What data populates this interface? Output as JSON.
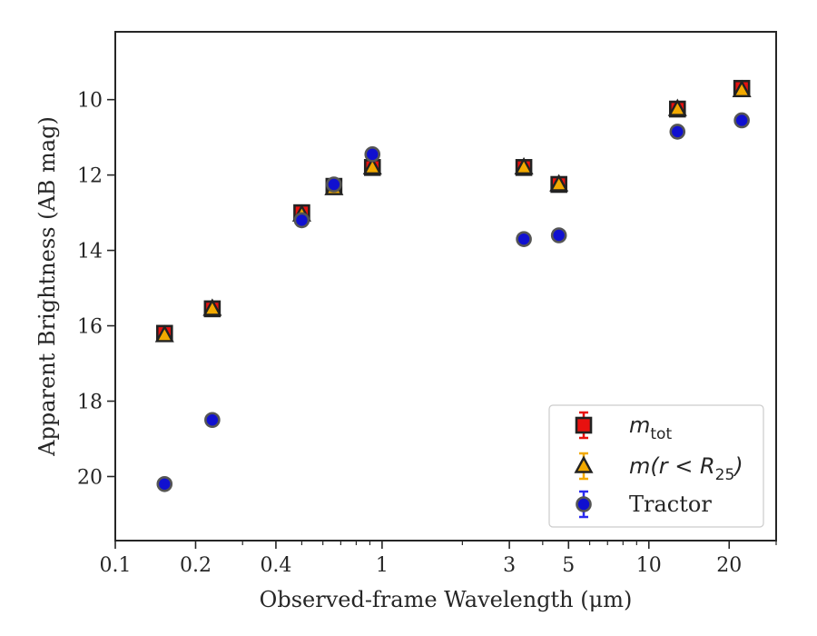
{
  "chart_data": {
    "type": "scatter",
    "xlabel": "Observed-frame Wavelength (μm)",
    "ylabel": "Apparent Brightness (AB mag)",
    "x_scale": "log",
    "xlim": [
      0.1,
      30
    ],
    "ylim": [
      21.7,
      8.2
    ],
    "y_inverted": true,
    "x_ticks": [
      {
        "value": 0.1,
        "label": "0.1"
      },
      {
        "value": 0.2,
        "label": "0.2"
      },
      {
        "value": 0.4,
        "label": "0.4"
      },
      {
        "value": 1,
        "label": "1"
      },
      {
        "value": 3,
        "label": "3"
      },
      {
        "value": 5,
        "label": "5"
      },
      {
        "value": 10,
        "label": "10"
      },
      {
        "value": 20,
        "label": "20"
      }
    ],
    "y_ticks": [
      {
        "value": 10,
        "label": "10"
      },
      {
        "value": 12,
        "label": "12"
      },
      {
        "value": 14,
        "label": "14"
      },
      {
        "value": 16,
        "label": "16"
      },
      {
        "value": 18,
        "label": "18"
      },
      {
        "value": 20,
        "label": "20"
      }
    ],
    "grid": false,
    "legend_position": "bottom-right",
    "series": [
      {
        "legend": {
          "main": "m",
          "sub": "tot",
          "tail": ""
        },
        "marker": "square",
        "color": "#e8110f",
        "edge_color": "#222222",
        "errbar_color": "#e8110f",
        "x": [
          0.153,
          0.231,
          0.5,
          0.66,
          0.92,
          3.4,
          4.6,
          12.8,
          22.3
        ],
        "y": [
          16.2,
          15.55,
          13.0,
          12.3,
          11.8,
          11.8,
          12.25,
          10.25,
          9.7
        ]
      },
      {
        "legend": {
          "main": "m(r < R",
          "sub": "25",
          "tail": ")"
        },
        "marker": "triangle",
        "color": "#f2a900",
        "edge_color": "#222222",
        "errbar_color": "#f2a900",
        "x": [
          0.153,
          0.231,
          0.5,
          0.66,
          0.92,
          3.4,
          4.6,
          12.8,
          22.3
        ],
        "y": [
          16.25,
          15.55,
          13.05,
          12.35,
          11.8,
          11.8,
          12.25,
          10.25,
          9.75
        ]
      },
      {
        "legend": {
          "main": "Tractor",
          "sub": "",
          "tail": ""
        },
        "marker": "circle",
        "color": "#1010d0",
        "edge_color": "#555555",
        "errbar_color": "#2a2af0",
        "x": [
          0.153,
          0.231,
          0.5,
          0.66,
          0.92,
          3.4,
          4.6,
          12.8,
          22.3
        ],
        "y": [
          20.2,
          18.5,
          13.2,
          12.25,
          11.45,
          13.7,
          13.6,
          10.85,
          10.55
        ]
      }
    ]
  }
}
